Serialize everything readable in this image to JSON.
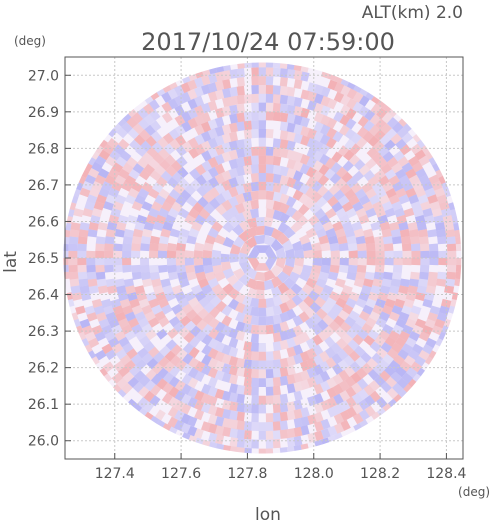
{
  "chart_data": {
    "type": "heatmap",
    "altitude_label": "ALT(km) 2.0",
    "timestamp": "2017/10/24 07:59:00",
    "xlabel": "lon",
    "ylabel": "lat",
    "x_unit": "(deg)",
    "y_unit": "(deg)",
    "xlim": [
      127.25,
      128.45
    ],
    "ylim": [
      25.95,
      27.05
    ],
    "x_ticks": [
      "127.4",
      "127.6",
      "127.8",
      "128.0",
      "128.2",
      "128.4"
    ],
    "y_ticks": [
      "27.0",
      "26.9",
      "26.8",
      "26.7",
      "26.6",
      "26.5",
      "26.4",
      "26.3",
      "26.2",
      "26.1",
      "26.0"
    ],
    "center": {
      "lon": 127.845,
      "lat": 26.5
    },
    "radius_deg": {
      "lon": 0.6,
      "lat": 0.535
    },
    "grid": true,
    "colors": {
      "positive": "#f08080",
      "negative": "#8a8af0",
      "neutral": "#ffffff",
      "axis": "#555555",
      "grid": "#c8c8c8"
    }
  }
}
